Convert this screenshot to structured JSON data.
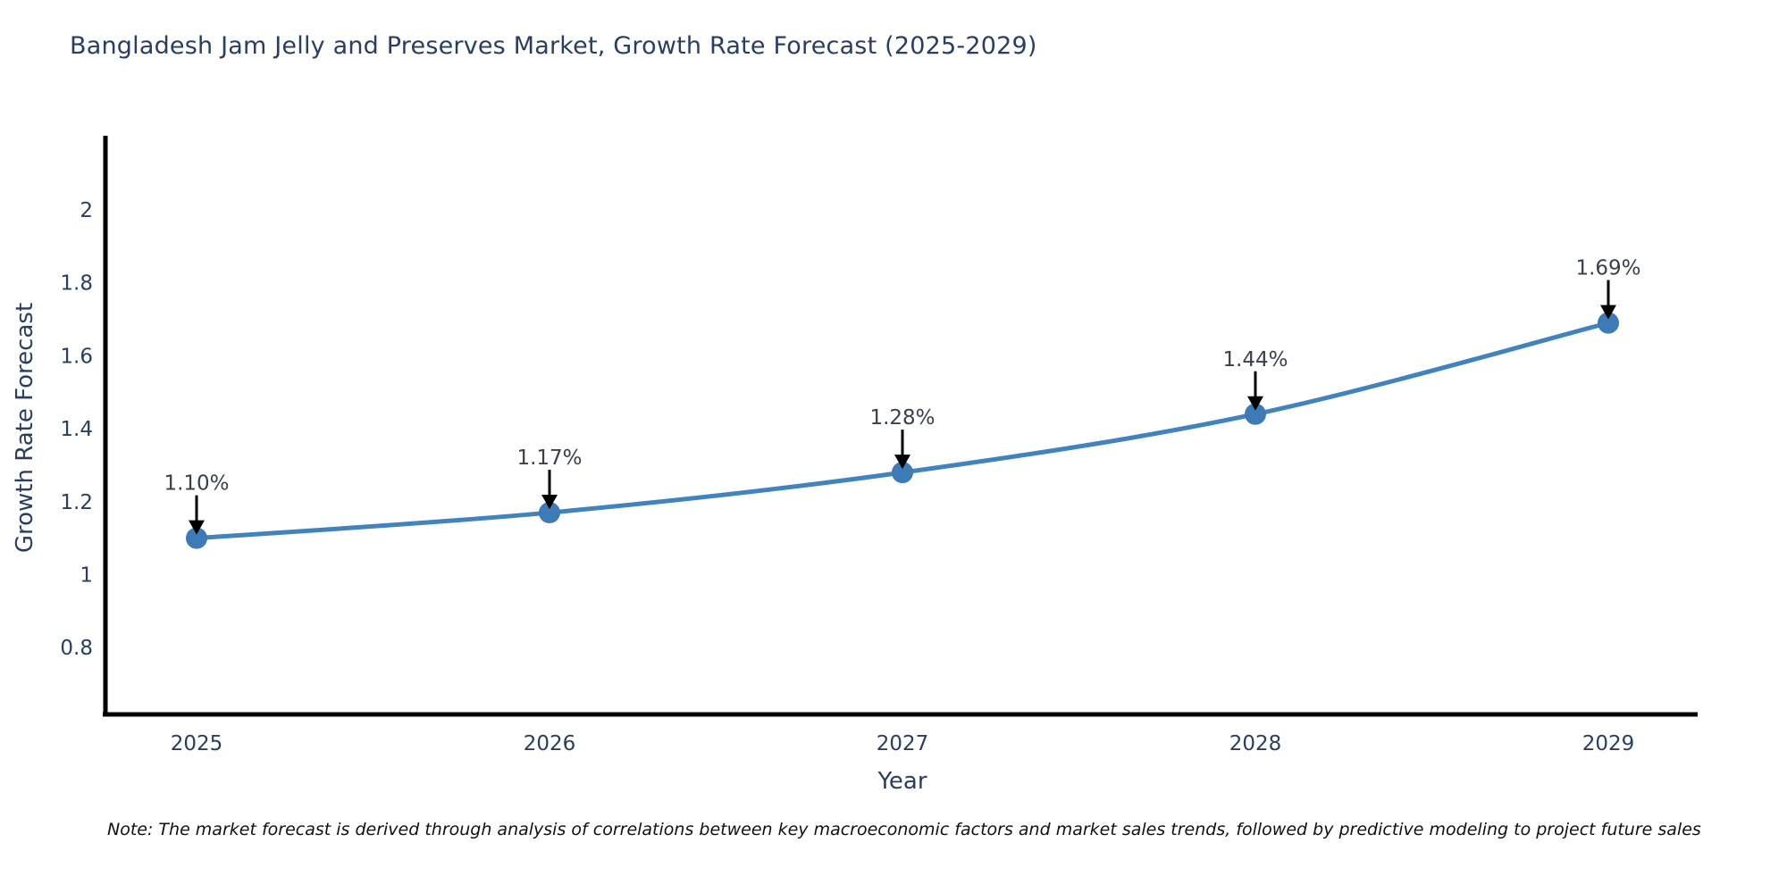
{
  "note": "Note: The market forecast is derived through analysis of correlations between key macroeconomic factors and market sales trends, followed by predictive modeling to project future sales",
  "chart_data": {
    "type": "line",
    "title": "Bangladesh Jam Jelly and Preserves Market, Growth Rate Forecast (2025-2029)",
    "xlabel": "Year",
    "ylabel": "Growth Rate Forecast",
    "x": [
      "2025",
      "2026",
      "2027",
      "2028",
      "2029"
    ],
    "series": [
      {
        "name": "Growth Rate Forecast",
        "values": [
          1.1,
          1.17,
          1.28,
          1.44,
          1.69
        ],
        "point_labels": [
          "1.10%",
          "1.17%",
          "1.28%",
          "1.44%",
          "1.69%"
        ]
      }
    ],
    "yticks": [
      0.8,
      1,
      1.2,
      1.4,
      1.6,
      1.8,
      2
    ],
    "ylim": [
      0.62,
      2.2
    ],
    "grid": false,
    "legend_position": "none",
    "annotations_have_arrows": true,
    "colors": {
      "line": "#4183bd",
      "marker": "#3d7ab6",
      "axis": "#000000",
      "tick_text": "#2a3f5f",
      "annotation_text": "#39404d",
      "arrow": "#000000"
    }
  }
}
